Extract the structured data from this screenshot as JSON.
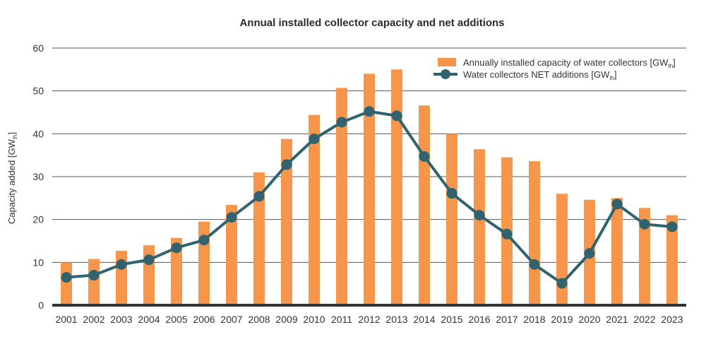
{
  "chart_data": {
    "type": "bar",
    "title": "Annual installed collector capacity and net additions",
    "ylabel": "Capacity added [GW",
    "ylabel_sub": "th",
    "ylabel_close": "]",
    "xlabel": "",
    "ylim": [
      0,
      60
    ],
    "yticks": [
      0,
      10,
      20,
      30,
      40,
      50,
      60
    ],
    "grid": true,
    "legend_position": "top-right",
    "categories": [
      "2001",
      "2002",
      "2003",
      "2004",
      "2005",
      "2006",
      "2007",
      "2008",
      "2009",
      "2010",
      "2011",
      "2012",
      "2013",
      "2014",
      "2015",
      "2016",
      "2017",
      "2018",
      "2019",
      "2020",
      "2021",
      "2022",
      "2023"
    ],
    "series": [
      {
        "name": "Annually installed capacity of water collectors [GW",
        "name_sub": "th",
        "name_close": "]",
        "type": "bar",
        "color": "#F7954A",
        "values": [
          10,
          10.8,
          12.7,
          14,
          15.7,
          19.5,
          23.4,
          31,
          38.8,
          44.4,
          50.7,
          54,
          55,
          46.6,
          40,
          36.4,
          34.5,
          33.6,
          26,
          24.6,
          25,
          22.7,
          21
        ]
      },
      {
        "name": "Water collectors NET additions [GW",
        "name_sub": "th",
        "name_close": "]",
        "type": "line",
        "color": "#2F6370",
        "values": [
          6.5,
          7,
          9.5,
          10.6,
          13.4,
          15.2,
          20.5,
          25.4,
          32.8,
          38.8,
          42.7,
          45.2,
          44.2,
          34.7,
          26.1,
          21,
          16.6,
          9.5,
          5.1,
          12.1,
          23.6,
          18.9,
          18.3
        ]
      }
    ]
  }
}
